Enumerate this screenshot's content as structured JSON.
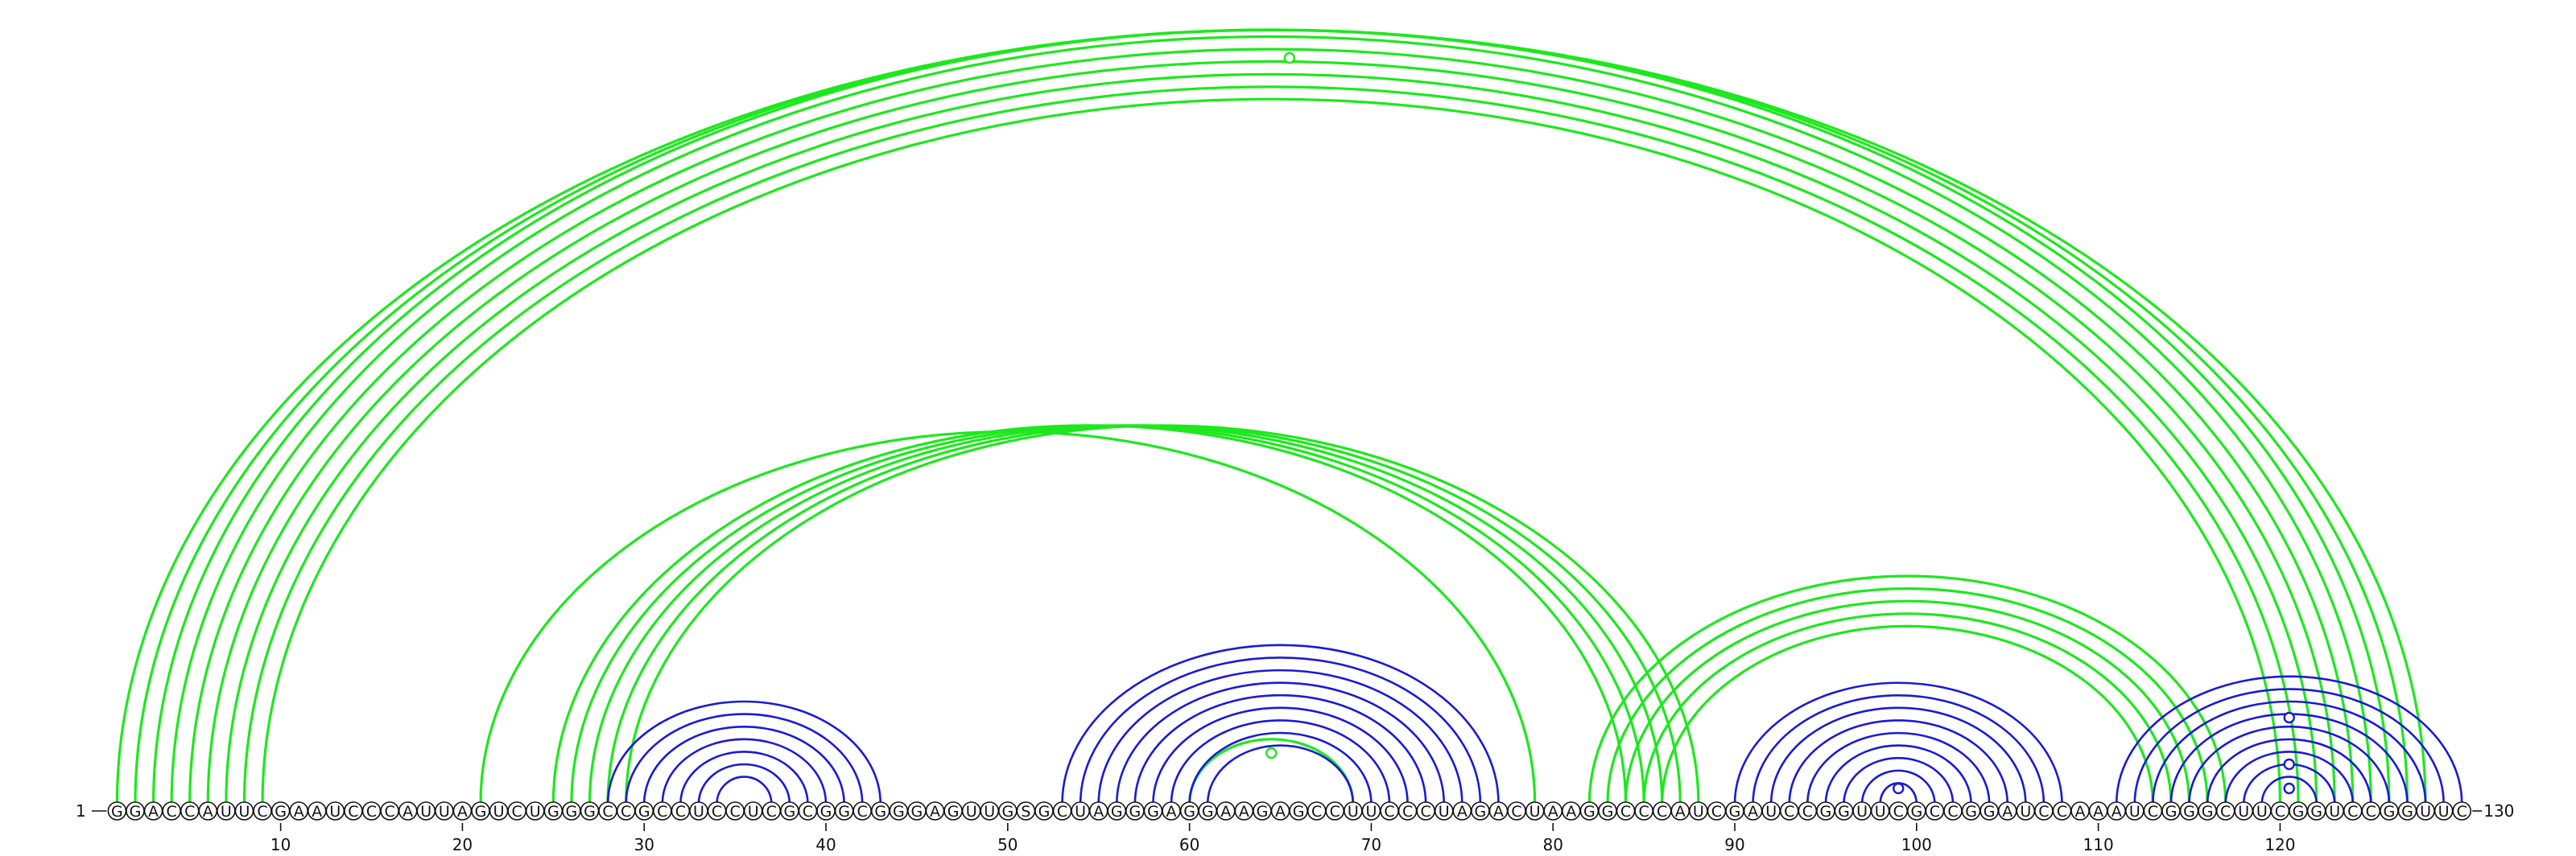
{
  "sequence": "GGACCAUUCGAAUCCCAUUAGUCUGGGCCGCCUCCUCGCGGCGGGAGUUGSGCUAGGGAGGAAGAGCCUUCCCUAGACUAAGGCCCAUCGAUCCGGUUCGCCGGAUCCAAAUCGGGCUUCGGUCCGGUUC",
  "start_label": "1",
  "end_label": "130",
  "ticks": [
    "10",
    "20",
    "30",
    "40",
    "50",
    "60",
    "70",
    "80",
    "90",
    "100",
    "110",
    "120"
  ],
  "colors": {
    "blue": "#1a1ad6",
    "green": "#1de81d",
    "letter": "#111111"
  },
  "pairs": [
    {
      "i": 1,
      "j": 128,
      "color": "green"
    },
    {
      "i": 2,
      "j": 127,
      "color": "green"
    },
    {
      "i": 3,
      "j": 126,
      "color": "green"
    },
    {
      "i": 4,
      "j": 125,
      "color": "green"
    },
    {
      "i": 5,
      "j": 124,
      "color": "green"
    },
    {
      "i": 6,
      "j": 123,
      "color": "green"
    },
    {
      "i": 7,
      "j": 122,
      "color": "green"
    },
    {
      "i": 8,
      "j": 121,
      "color": "green"
    },
    {
      "i": 9,
      "j": 120,
      "color": "green"
    },
    {
      "i": 21,
      "j": 79,
      "color": "green"
    },
    {
      "i": 25,
      "j": 84,
      "color": "green"
    },
    {
      "i": 26,
      "j": 85,
      "color": "green"
    },
    {
      "i": 27,
      "j": 86,
      "color": "green"
    },
    {
      "i": 28,
      "j": 87,
      "color": "green"
    },
    {
      "i": 29,
      "j": 88,
      "color": "green"
    },
    {
      "i": 82,
      "j": 117,
      "color": "green"
    },
    {
      "i": 83,
      "j": 116,
      "color": "green"
    },
    {
      "i": 84,
      "j": 115,
      "color": "green"
    },
    {
      "i": 85,
      "j": 114,
      "color": "green"
    },
    {
      "i": 86,
      "j": 113,
      "color": "green"
    },
    {
      "i": 60,
      "j": 69,
      "color": "green"
    },
    {
      "i": 28,
      "j": 43,
      "color": "blue"
    },
    {
      "i": 29,
      "j": 42,
      "color": "blue"
    },
    {
      "i": 30,
      "j": 41,
      "color": "blue"
    },
    {
      "i": 31,
      "j": 40,
      "color": "blue"
    },
    {
      "i": 32,
      "j": 39,
      "color": "blue"
    },
    {
      "i": 33,
      "j": 38,
      "color": "blue"
    },
    {
      "i": 34,
      "j": 37,
      "color": "blue"
    },
    {
      "i": 53,
      "j": 77,
      "color": "blue"
    },
    {
      "i": 54,
      "j": 76,
      "color": "blue"
    },
    {
      "i": 55,
      "j": 75,
      "color": "blue"
    },
    {
      "i": 56,
      "j": 74,
      "color": "blue"
    },
    {
      "i": 57,
      "j": 73,
      "color": "blue"
    },
    {
      "i": 58,
      "j": 72,
      "color": "blue"
    },
    {
      "i": 59,
      "j": 71,
      "color": "blue"
    },
    {
      "i": 60,
      "j": 70,
      "color": "blue"
    },
    {
      "i": 61,
      "j": 69,
      "color": "blue"
    },
    {
      "i": 90,
      "j": 108,
      "color": "blue"
    },
    {
      "i": 91,
      "j": 107,
      "color": "blue"
    },
    {
      "i": 92,
      "j": 106,
      "color": "blue"
    },
    {
      "i": 93,
      "j": 105,
      "color": "blue"
    },
    {
      "i": 94,
      "j": 104,
      "color": "blue"
    },
    {
      "i": 95,
      "j": 103,
      "color": "blue"
    },
    {
      "i": 96,
      "j": 102,
      "color": "blue"
    },
    {
      "i": 97,
      "j": 101,
      "color": "blue"
    },
    {
      "i": 98,
      "j": 100,
      "color": "blue"
    },
    {
      "i": 111,
      "j": 130,
      "color": "blue"
    },
    {
      "i": 112,
      "j": 129,
      "color": "blue"
    },
    {
      "i": 113,
      "j": 128,
      "color": "blue"
    },
    {
      "i": 114,
      "j": 127,
      "color": "blue"
    },
    {
      "i": 115,
      "j": 126,
      "color": "blue"
    },
    {
      "i": 116,
      "j": 125,
      "color": "blue"
    },
    {
      "i": 117,
      "j": 124,
      "color": "blue"
    },
    {
      "i": 118,
      "j": 123,
      "color": "blue"
    },
    {
      "i": 119,
      "j": 122,
      "color": "blue"
    }
  ],
  "markers": [
    {
      "x": 65.5,
      "color": "green"
    },
    {
      "x": 64.5,
      "color": "green"
    },
    {
      "x": 120.5,
      "color": "blue"
    },
    {
      "x": 120.5,
      "color": "blue"
    },
    {
      "x": 120.5,
      "color": "blue"
    },
    {
      "x": 99,
      "color": "blue"
    }
  ]
}
